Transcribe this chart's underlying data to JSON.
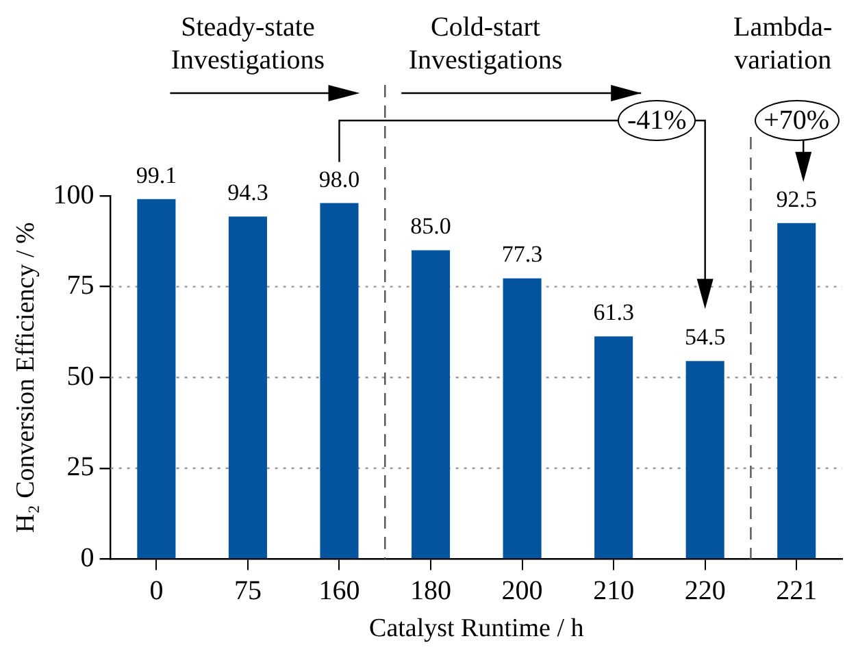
{
  "chart_data": {
    "type": "bar",
    "categories": [
      "0",
      "75",
      "160",
      "180",
      "200",
      "210",
      "220",
      "221"
    ],
    "values": [
      99.1,
      94.3,
      98.0,
      85.0,
      77.3,
      61.3,
      54.5,
      92.5
    ],
    "value_labels": [
      "99.1",
      "94.3",
      "98.0",
      "85.0",
      "77.3",
      "61.3",
      "54.5",
      "92.5"
    ],
    "color": "#0454a0",
    "xlabel": "Catalyst Runtime / h",
    "ylabel": "H₂ Conversion Efficiency / %",
    "ylim": [
      0,
      100
    ],
    "yticks": [
      0,
      25,
      50,
      75,
      100
    ],
    "grid": "y",
    "legend": false,
    "annotations": [
      "Steady-state Investigations",
      "Cold-start Investigations",
      "Lambda-variation",
      "-41%",
      "+70%"
    ]
  }
}
